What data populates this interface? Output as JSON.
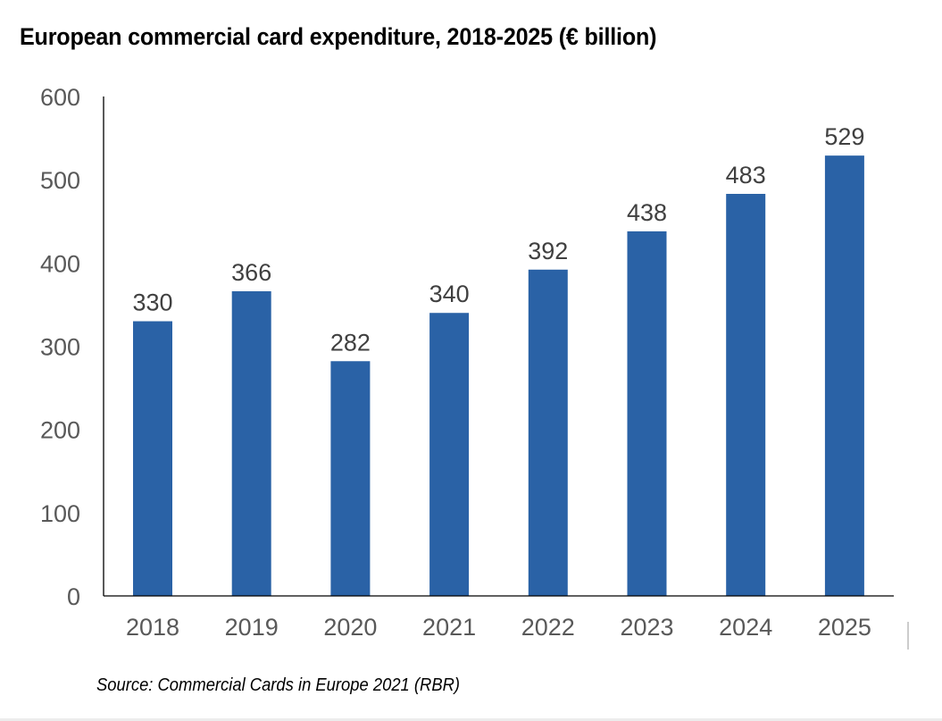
{
  "chart_data": {
    "type": "bar",
    "title": "European commercial card expenditure, 2018-2025 (€ billion)",
    "categories": [
      "2018",
      "2019",
      "2020",
      "2021",
      "2022",
      "2023",
      "2024",
      "2025"
    ],
    "values": [
      330,
      366,
      282,
      340,
      392,
      438,
      483,
      529
    ],
    "data_labels": [
      "330",
      "366",
      "282",
      "340",
      "392",
      "438",
      "483",
      "529"
    ],
    "xlabel": "",
    "ylabel": "",
    "ylim": [
      0,
      600
    ],
    "yticks": [
      0,
      100,
      200,
      300,
      400,
      500,
      600
    ],
    "ytick_labels": [
      "0",
      "100",
      "200",
      "300",
      "400",
      "500",
      "600"
    ],
    "grid": false,
    "legend": "none",
    "bar_color": "#2a62a6",
    "source": "Source: Commercial Cards in Europe 2021 (RBR)"
  }
}
